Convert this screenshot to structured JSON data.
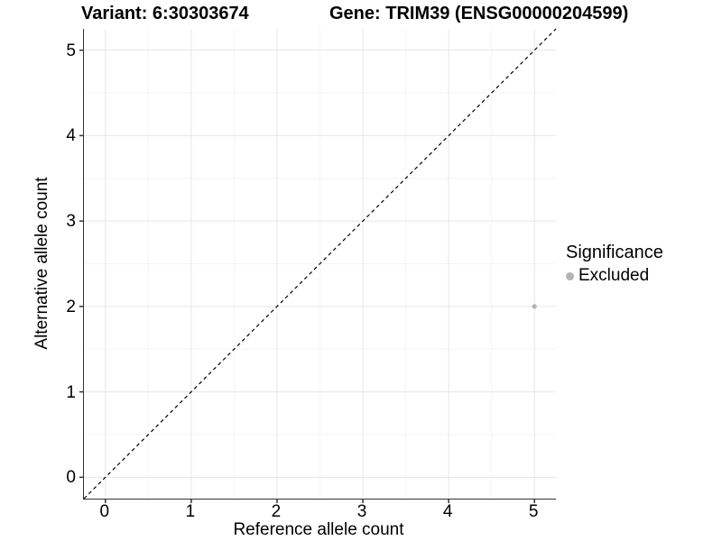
{
  "header": {
    "variant_title": "Variant: 6:30303674",
    "gene_title": "Gene: TRIM39 (ENSG00000204599)"
  },
  "legend": {
    "title": "Significance",
    "entries": [
      {
        "label": "Excluded",
        "color": "#b3b3b3"
      }
    ]
  },
  "chart_data": {
    "type": "scatter",
    "title_left": "Variant: 6:30303674",
    "title_right": "Gene: TRIM39 (ENSG00000204599)",
    "xlabel": "Reference allele count",
    "ylabel": "Alternative allele count",
    "xlim": [
      -0.25,
      5.25
    ],
    "ylim": [
      -0.25,
      5.25
    ],
    "x_ticks": [
      0,
      1,
      2,
      3,
      4,
      5
    ],
    "y_ticks": [
      0,
      1,
      2,
      3,
      4,
      5
    ],
    "minor_ticks": [
      0.5,
      1.5,
      2.5,
      3.5,
      4.5
    ],
    "grid": true,
    "legend_position": "right",
    "legend_title": "Significance",
    "series": [
      {
        "name": "Excluded",
        "color": "#b3b3b3",
        "points": [
          {
            "x": 5,
            "y": 2
          }
        ]
      }
    ],
    "reference_line": {
      "description": "identity line y = x",
      "style": "dashed",
      "color": "#000000",
      "from": [
        -0.25,
        -0.25
      ],
      "to": [
        5.25,
        5.25
      ]
    },
    "colors": {
      "grid_major": "#e6e6e6",
      "grid_minor": "#f4f4f4",
      "axis_line": "#333333",
      "point": "#b3b3b3",
      "text": "#000000"
    }
  }
}
